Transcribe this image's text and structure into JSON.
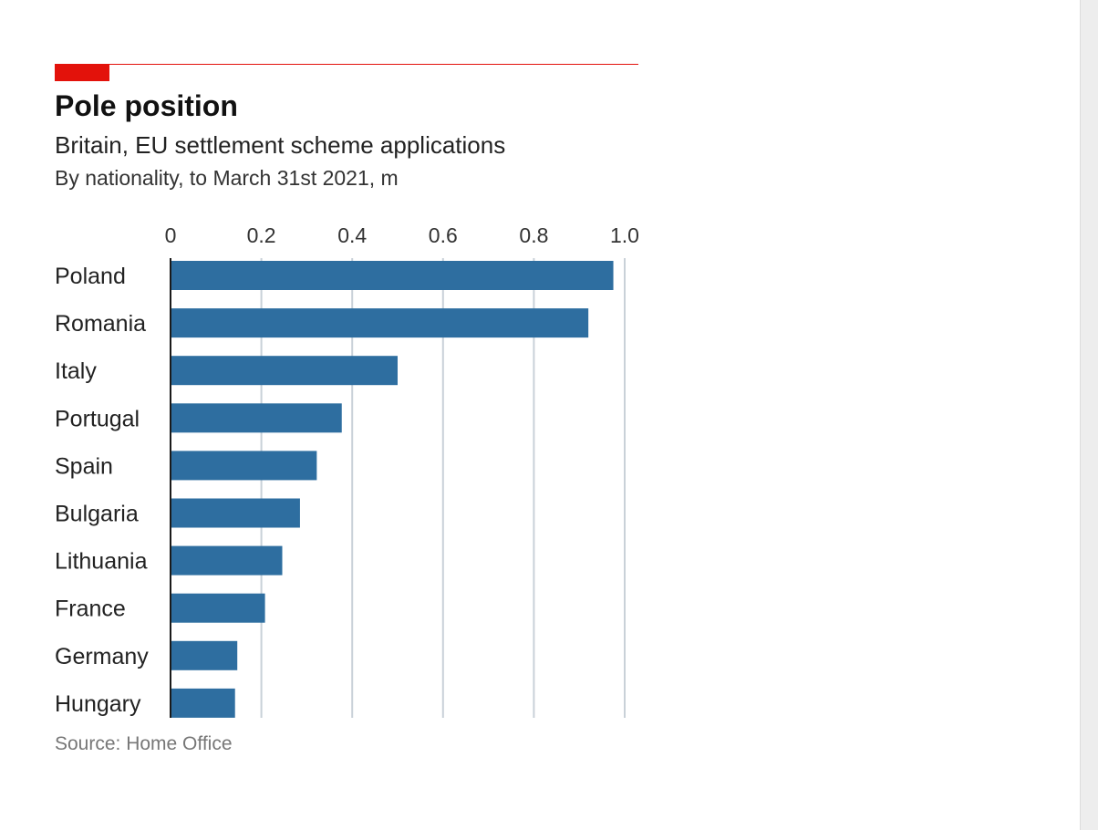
{
  "header": {
    "title": "Pole position",
    "subtitle": "Britain, EU settlement scheme applications",
    "unit_line": "By nationality, to March 31st 2021, m"
  },
  "footer": {
    "source": "Source: Home Office"
  },
  "colors": {
    "accent": "#e3120b",
    "bar": "#2e6ea0",
    "grid": "#c9d1d8",
    "axis": "#1a1a1a"
  },
  "chart_data": {
    "type": "bar",
    "orientation": "horizontal",
    "categories": [
      "Poland",
      "Romania",
      "Italy",
      "Portugal",
      "Spain",
      "Bulgaria",
      "Lithuania",
      "France",
      "Germany",
      "Hungary"
    ],
    "values": [
      0.975,
      0.92,
      0.5,
      0.377,
      0.322,
      0.285,
      0.246,
      0.208,
      0.147,
      0.142
    ],
    "xlim": [
      0,
      1.0
    ],
    "xticks": [
      "0",
      "0.2",
      "0.4",
      "0.6",
      "0.8",
      "1.0"
    ],
    "xtick_values": [
      0,
      0.2,
      0.4,
      0.6,
      0.8,
      1.0
    ],
    "xaxis_position": "top",
    "grid": true
  }
}
